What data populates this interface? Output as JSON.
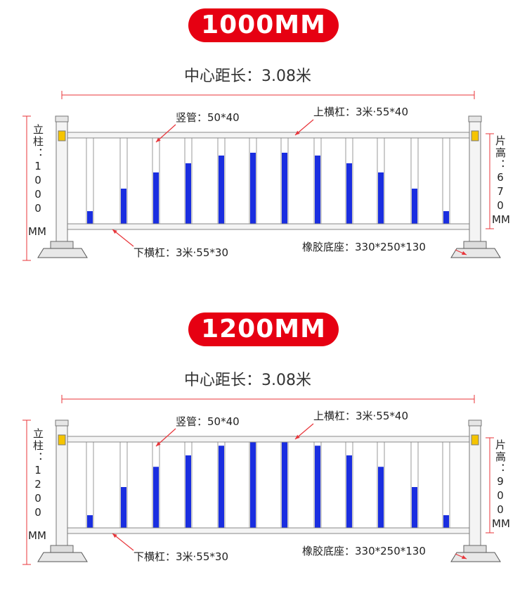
{
  "sections": [
    {
      "badge": "1000MM",
      "center_distance": "中心距长：3.08米",
      "vertical_pipe": "竖管：50*40",
      "top_rail": "上横杠：3米·55*40",
      "bottom_rail": "下横杠：3米·55*30",
      "rubber_base": "橡胶底座：330*250*130",
      "post_label": "立柱：1000",
      "post_unit": "MM",
      "panel_label": "片高：670",
      "panel_unit": "MM"
    },
    {
      "badge": "1200MM",
      "center_distance": "中心距长：3.08米",
      "vertical_pipe": "竖管：50*40",
      "top_rail": "上横杠：3米·55*40",
      "bottom_rail": "下横杠：3米·55*30",
      "rubber_base": "橡胶底座：330*250*130",
      "post_label": "立柱：1200",
      "post_unit": "MM",
      "panel_label": "片高：900",
      "panel_unit": "MM"
    }
  ]
}
